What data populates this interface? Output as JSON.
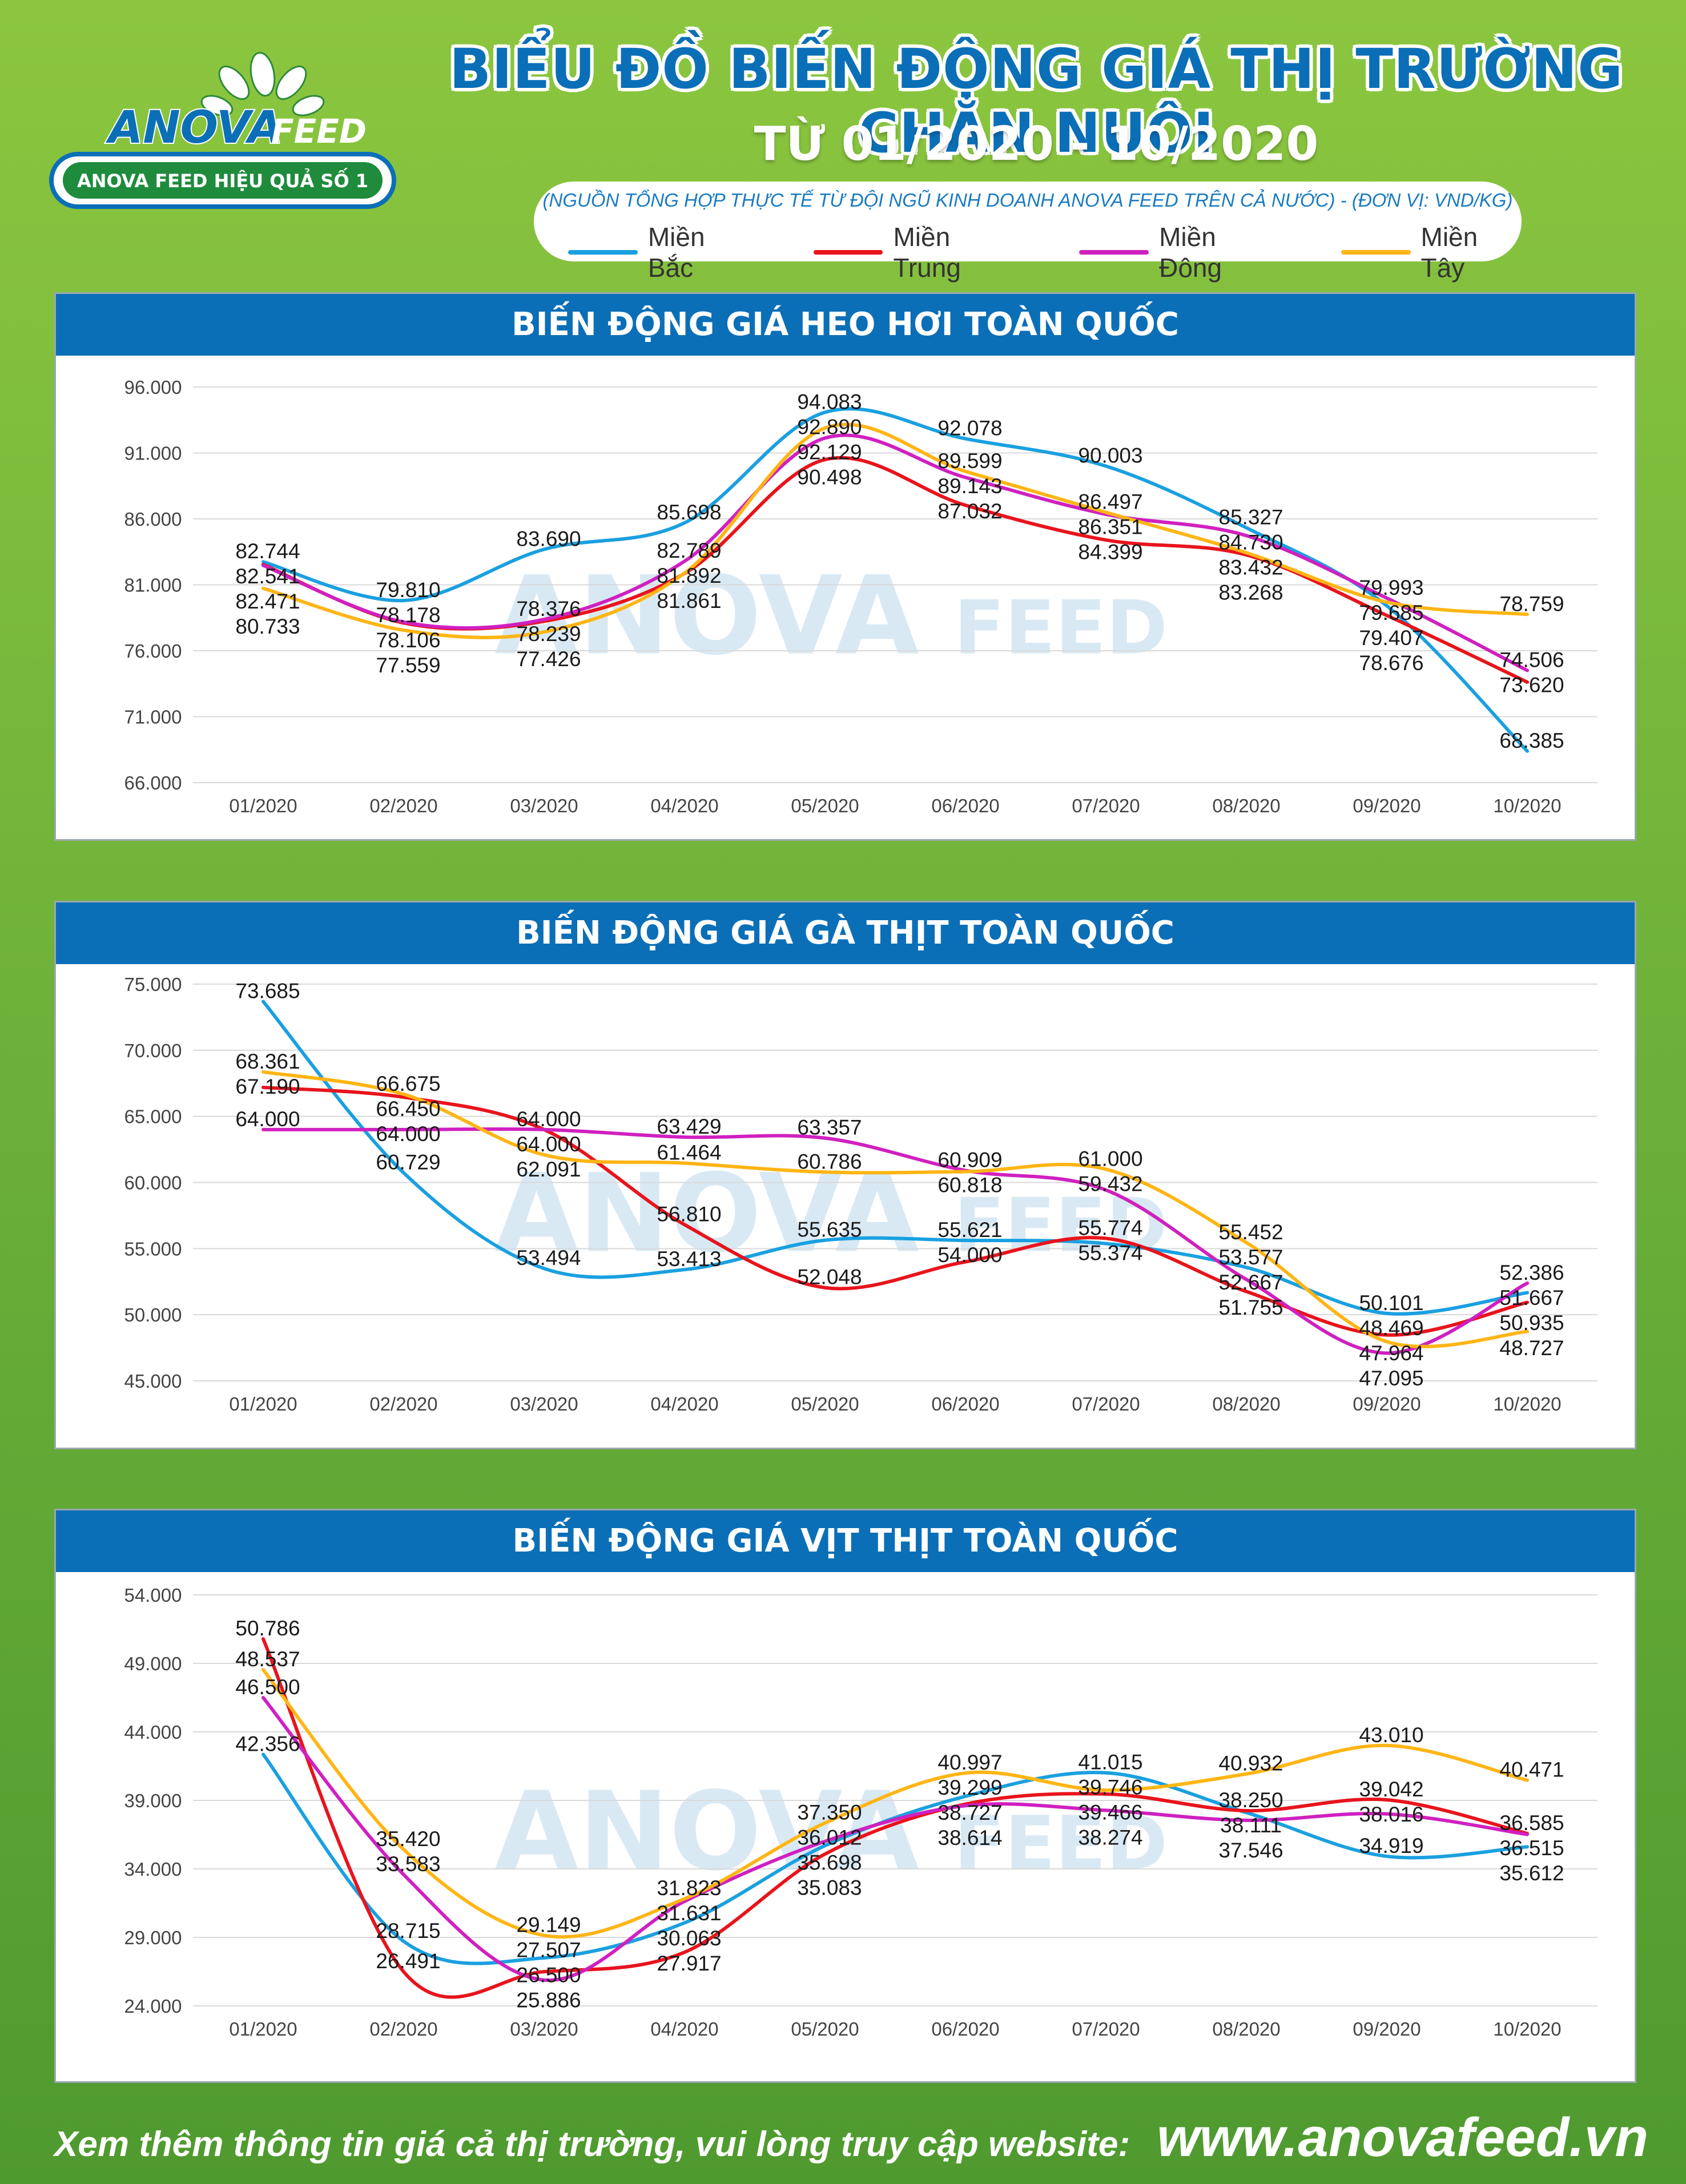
{
  "brand": {
    "logo_main": "ANOVA",
    "logo_sub": "FEED",
    "slogan": "ANOVA FEED HIỆU QUẢ SỐ 1"
  },
  "header": {
    "title": "BIỂU ĐỒ BIẾN ĐỘNG GIÁ THỊ TRƯỜNG CHĂN NUÔI",
    "subtitle": "TỪ 01/2020 - 10/2020",
    "source": "(NGUỒN TỔNG HỢP THỰC TẾ TỪ ĐỘI NGŨ KINH DOANH ANOVA FEED TRÊN CẢ NƯỚC)   -   (ĐƠN VỊ: VND/KG)"
  },
  "legend": [
    {
      "name": "Miền Bắc",
      "color": "#1aa0e0"
    },
    {
      "name": "Miền Trung",
      "color": "#e8141c"
    },
    {
      "name": "Miền Đông",
      "color": "#d020c0"
    },
    {
      "name": "Miền Tây",
      "color": "#ffb515"
    }
  ],
  "chart_data": [
    {
      "type": "line",
      "title": "BIẾN ĐỘNG GIÁ HEO HƠI TOÀN QUỐC",
      "categories": [
        "01/2020",
        "02/2020",
        "03/2020",
        "04/2020",
        "05/2020",
        "06/2020",
        "07/2020",
        "08/2020",
        "09/2020",
        "10/2020"
      ],
      "yticks": [
        "96.000",
        "91.000",
        "86.000",
        "81.000",
        "76.000",
        "71.000",
        "66.000"
      ],
      "ylim": [
        66000,
        96000
      ],
      "grid": true,
      "series": [
        {
          "name": "Miền Bắc",
          "values": [
            82744,
            79810,
            83690,
            85698,
            94083,
            92078,
            90003,
            85327,
            79407,
            68385
          ]
        },
        {
          "name": "Miền Trung",
          "values": [
            82541,
            78106,
            78239,
            81861,
            90498,
            87032,
            84399,
            83268,
            78676,
            73620
          ]
        },
        {
          "name": "Miền Đông",
          "values": [
            82471,
            78178,
            78376,
            82789,
            92129,
            89143,
            86351,
            84730,
            79993,
            74506
          ]
        },
        {
          "name": "Miền Tây",
          "values": [
            80733,
            77559,
            77426,
            81892,
            92890,
            89599,
            86497,
            83432,
            79685,
            78759
          ]
        }
      ],
      "labels": [
        [
          "82.744",
          "79.810",
          "83.690",
          "85.698",
          "94.083",
          "92.078",
          "90.003",
          "85.327",
          "79.407",
          "68.385"
        ],
        [
          "82.541",
          "78.106",
          "78.239",
          "81.861",
          "90.498",
          "87.032",
          "84.399",
          "83.268",
          "78.676",
          "73.620"
        ],
        [
          "82.471",
          "78.178",
          "78.376",
          "82.789",
          "92.129",
          "89.143",
          "86.351",
          "84.730",
          "79.993",
          "74.506"
        ],
        [
          "80.733",
          "77.559",
          "77.426",
          "81.892",
          "92.890",
          "89.599",
          "86.497",
          "83.432",
          "79.685",
          "78.759"
        ]
      ]
    },
    {
      "type": "line",
      "title": "BIẾN ĐỘNG GIÁ GÀ THỊT TOÀN QUỐC",
      "categories": [
        "01/2020",
        "02/2020",
        "03/2020",
        "04/2020",
        "05/2020",
        "06/2020",
        "07/2020",
        "08/2020",
        "09/2020",
        "10/2020"
      ],
      "yticks": [
        "75.000",
        "70.000",
        "65.000",
        "60.000",
        "55.000",
        "50.000",
        "45.000"
      ],
      "ylim": [
        45000,
        75000
      ],
      "grid": true,
      "series": [
        {
          "name": "Miền Bắc",
          "values": [
            73685,
            60729,
            53494,
            53413,
            55635,
            55621,
            55374,
            53577,
            50101,
            51667
          ]
        },
        {
          "name": "Miền Trung",
          "values": [
            67190,
            66450,
            64000,
            56810,
            52048,
            54000,
            55774,
            51755,
            48469,
            50935
          ]
        },
        {
          "name": "Miền Đông",
          "values": [
            64000,
            64000,
            64000,
            63429,
            63357,
            60909,
            59432,
            52667,
            47095,
            52386
          ]
        },
        {
          "name": "Miền Tây",
          "values": [
            68361,
            66675,
            62091,
            61464,
            60786,
            60818,
            61000,
            55452,
            47964,
            48727
          ]
        }
      ],
      "labels": [
        [
          "73.685",
          "60.729",
          "53.494",
          "53.413",
          "55.635",
          "55.621",
          "55.374",
          "53.577",
          "50.101",
          "51.667"
        ],
        [
          "67.190",
          "66.450",
          "64.000",
          "56.810",
          "52.048",
          "54.000",
          "55.774",
          "51.755",
          "48.469",
          "50.935"
        ],
        [
          "64.000",
          "64.000",
          "64.000",
          "63.429",
          "63.357",
          "60.909",
          "59.432",
          "52.667",
          "47.095",
          "52.386"
        ],
        [
          "68.361",
          "66.675",
          "62.091",
          "61.464",
          "60.786",
          "60.818",
          "61.000",
          "55.452",
          "47.964",
          "48.727"
        ]
      ]
    },
    {
      "type": "line",
      "title": "BIẾN ĐỘNG GIÁ VỊT THỊT TOÀN QUỐC",
      "categories": [
        "01/2020",
        "02/2020",
        "03/2020",
        "04/2020",
        "05/2020",
        "06/2020",
        "07/2020",
        "08/2020",
        "09/2020",
        "10/2020"
      ],
      "yticks": [
        "54.000",
        "49.000",
        "44.000",
        "39.000",
        "34.000",
        "29.000",
        "24.000"
      ],
      "ylim": [
        24000,
        54000
      ],
      "grid": true,
      "series": [
        {
          "name": "Miền Bắc",
          "values": [
            42356,
            28715,
            27507,
            30063,
            35698,
            39299,
            41015,
            38111,
            34919,
            35612
          ]
        },
        {
          "name": "Miền Trung",
          "values": [
            50786,
            26491,
            26500,
            27917,
            35083,
            38727,
            39466,
            38250,
            39042,
            36585
          ]
        },
        {
          "name": "Miền Đông",
          "values": [
            46500,
            33583,
            25886,
            31631,
            36012,
            38614,
            38274,
            37546,
            38016,
            36515
          ]
        },
        {
          "name": "Miền Tây",
          "values": [
            48537,
            35420,
            29149,
            31823,
            37350,
            40997,
            39746,
            40932,
            43010,
            40471
          ]
        }
      ],
      "labels": [
        [
          "42.356",
          "28.715",
          "27.507",
          "30.063",
          "35.698",
          "39.299",
          "41.015",
          "38.111",
          "34.919",
          "35.612"
        ],
        [
          "50.786",
          "26.491",
          "26.500",
          "27.917",
          "35.083",
          "38.727",
          "39.466",
          "38.250",
          "39.042",
          "36.585"
        ],
        [
          "46.500",
          "33.583",
          "25.886",
          "31.631",
          "36.012",
          "38.614",
          "38.274",
          "37.546",
          "38.016",
          "36.515"
        ],
        [
          "48.537",
          "35.420",
          "29.149",
          "31.823",
          "37.350",
          "40.997",
          "39.746",
          "40.932",
          "43.010",
          "40.471"
        ]
      ]
    }
  ],
  "footer": {
    "text": "Xem thêm thông tin giá cả thị trường, vui lòng truy cập website:",
    "url": "www.anovafeed.vn"
  }
}
